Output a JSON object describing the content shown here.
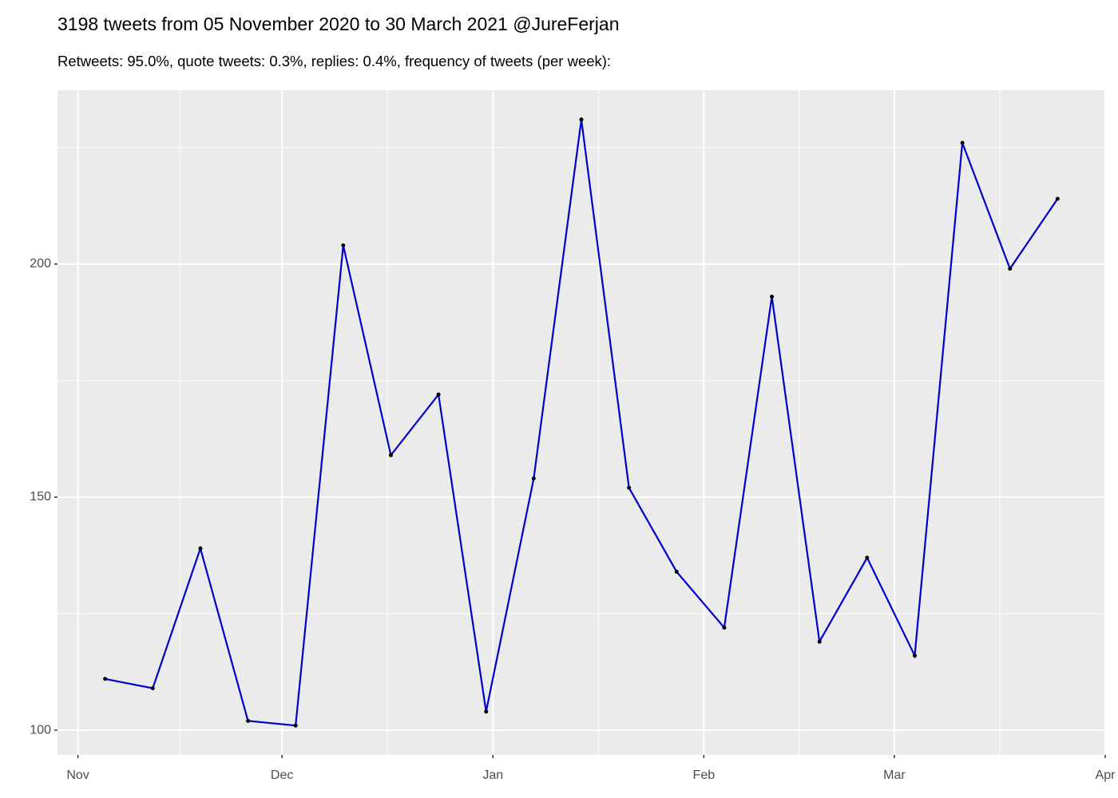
{
  "chart_data": {
    "type": "line",
    "title": "3198 tweets from 05 November 2020 to 30 March 2021 @JureFerjan",
    "subtitle": "Retweets: 95.0%, quote tweets: 0.3%, replies: 0.4%, frequency of tweets (per week):",
    "x": [
      "2020-11-05",
      "2020-11-12",
      "2020-11-19",
      "2020-11-26",
      "2020-12-03",
      "2020-12-10",
      "2020-12-17",
      "2020-12-24",
      "2020-12-31",
      "2021-01-07",
      "2021-01-14",
      "2021-01-21",
      "2021-01-28",
      "2021-02-04",
      "2021-02-11",
      "2021-02-18",
      "2021-02-25",
      "2021-03-04",
      "2021-03-11",
      "2021-03-18",
      "2021-03-25"
    ],
    "values": [
      111,
      109,
      139,
      102,
      101,
      204,
      159,
      172,
      104,
      154,
      231,
      152,
      134,
      122,
      193,
      119,
      137,
      116,
      226,
      199,
      214
    ],
    "color": "#0000cc",
    "point_color": "#000000",
    "xlim": [
      "2020-10-29",
      "2021-04-01"
    ],
    "xticks": [
      {
        "value": "2020-11-01",
        "label": "Nov"
      },
      {
        "value": "2020-12-01",
        "label": "Dec"
      },
      {
        "value": "2021-01-01",
        "label": "Jan"
      },
      {
        "value": "2021-02-01",
        "label": "Feb"
      },
      {
        "value": "2021-03-01",
        "label": "Mar"
      },
      {
        "value": "2021-04-01",
        "label": "Apr"
      }
    ],
    "xminorticks": [
      "2020-11-16",
      "2020-12-16T12:00Z",
      "2021-01-16T12:00Z",
      "2021-02-15",
      "2021-03-16T12:00Z"
    ],
    "ylim": [
      94.7,
      237.3
    ],
    "yticks": [
      100,
      150,
      200
    ],
    "yminorticks": [
      125,
      175,
      225
    ],
    "grid": true
  }
}
